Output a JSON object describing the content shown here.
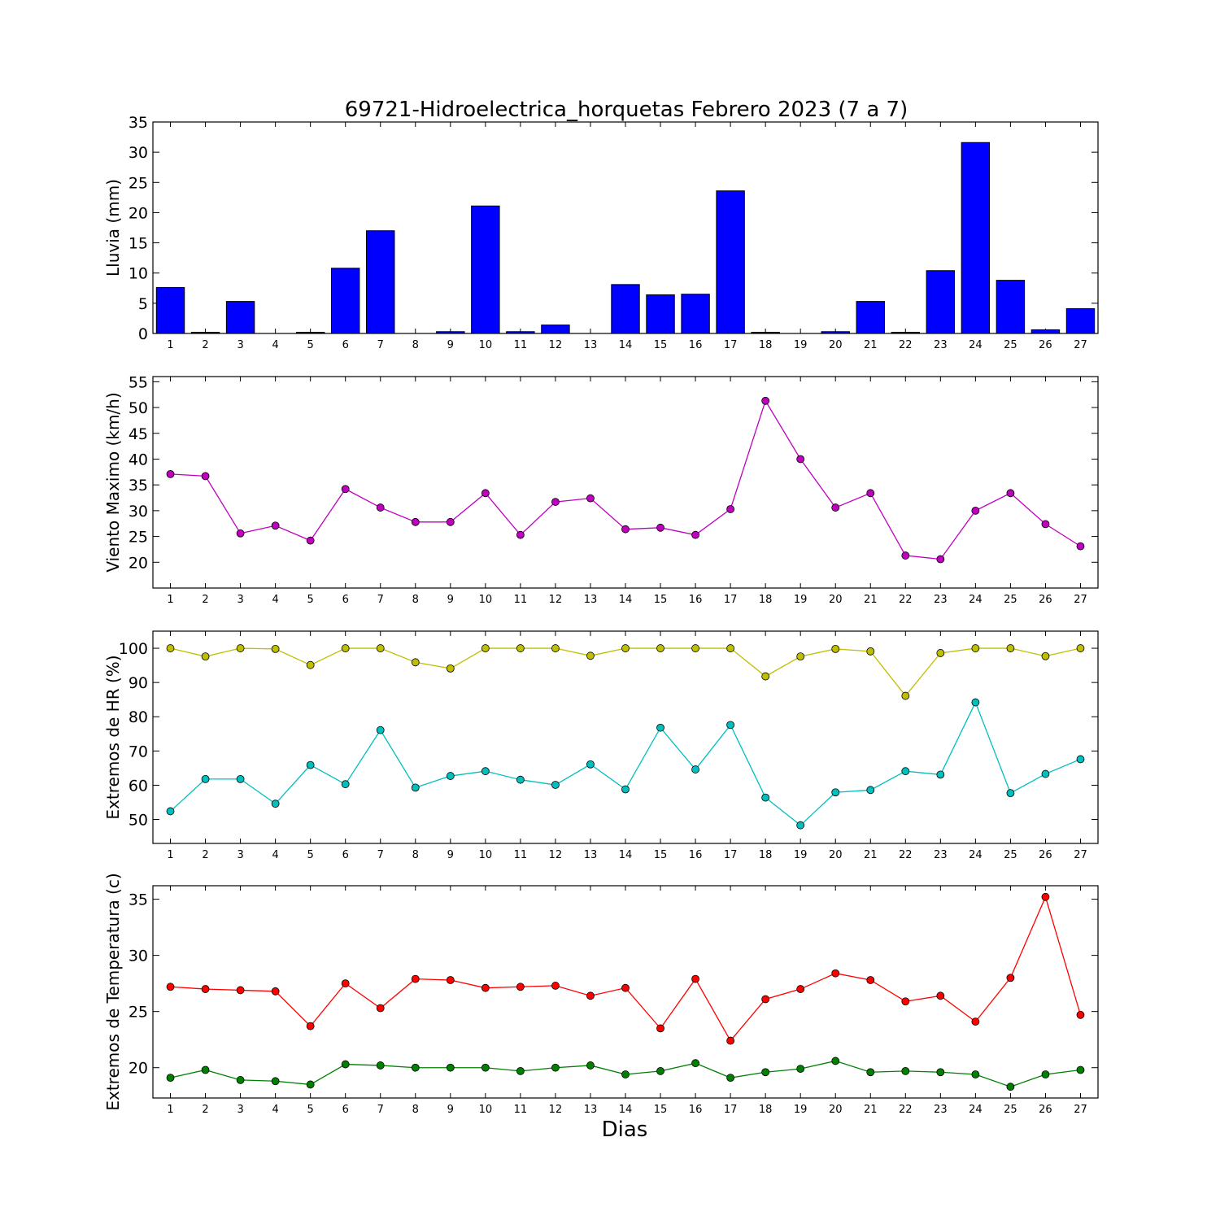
{
  "figure": {
    "title": "69721-Hidroelectrica_horquetas Febrero 2023  (7 a 7)",
    "xlabel": "Dias"
  },
  "chart_data": [
    {
      "type": "bar",
      "ylabel": "Lluvia (mm)",
      "ylim": [
        0,
        35
      ],
      "yticks": [
        0,
        5,
        10,
        15,
        20,
        25,
        30,
        35
      ],
      "xlim": [
        0.5,
        27.5
      ],
      "categories": [
        1,
        2,
        3,
        4,
        5,
        6,
        7,
        8,
        9,
        10,
        11,
        12,
        13,
        14,
        15,
        16,
        17,
        18,
        19,
        20,
        21,
        22,
        23,
        24,
        25,
        26,
        27
      ],
      "grid": false,
      "series": [
        {
          "color": "#0000ff",
          "values": [
            7.6,
            0.2,
            5.3,
            0,
            0.2,
            10.8,
            17.0,
            0,
            0.3,
            21.1,
            0.3,
            1.4,
            0,
            8.1,
            6.4,
            6.5,
            23.6,
            0.2,
            0,
            0.3,
            5.3,
            0.2,
            10.4,
            31.6,
            8.8,
            0.6,
            4.1
          ]
        }
      ]
    },
    {
      "type": "line",
      "ylabel": "Viento Maximo (km/h)",
      "ylim": [
        15,
        56
      ],
      "yticks": [
        20,
        25,
        30,
        35,
        40,
        45,
        50,
        55
      ],
      "xlim": [
        0.5,
        27.5
      ],
      "categories": [
        1,
        2,
        3,
        4,
        5,
        6,
        7,
        8,
        9,
        10,
        11,
        12,
        13,
        14,
        15,
        16,
        17,
        18,
        19,
        20,
        21,
        22,
        23,
        24,
        25,
        26,
        27
      ],
      "grid": false,
      "series": [
        {
          "color": "#bf00bf",
          "values": [
            37.1,
            36.7,
            25.6,
            27.1,
            24.2,
            34.2,
            30.6,
            27.8,
            27.8,
            33.4,
            25.3,
            31.7,
            32.4,
            26.4,
            26.7,
            25.3,
            30.3,
            51.3,
            40.0,
            30.6,
            33.4,
            21.3,
            20.6,
            30.0,
            33.4,
            27.4,
            23.1
          ]
        }
      ]
    },
    {
      "type": "line",
      "ylabel": "Extremos de HR (%)",
      "ylim": [
        43,
        105
      ],
      "yticks": [
        50,
        60,
        70,
        80,
        90,
        100
      ],
      "xlim": [
        0.5,
        27.5
      ],
      "categories": [
        1,
        2,
        3,
        4,
        5,
        6,
        7,
        8,
        9,
        10,
        11,
        12,
        13,
        14,
        15,
        16,
        17,
        18,
        19,
        20,
        21,
        22,
        23,
        24,
        25,
        26,
        27
      ],
      "grid": false,
      "series": [
        {
          "color": "#bfbf00",
          "values": [
            100,
            97.6,
            100,
            99.8,
            95.1,
            100,
            100,
            95.9,
            94.1,
            100,
            100,
            100,
            97.8,
            100,
            100,
            100,
            100,
            91.8,
            97.6,
            99.8,
            99.1,
            86.1,
            98.6,
            100,
            100,
            97.7,
            100
          ]
        },
        {
          "color": "#00bfbf",
          "values": [
            52.4,
            61.8,
            61.8,
            54.6,
            65.9,
            60.3,
            76.1,
            59.3,
            62.7,
            64.1,
            61.6,
            60.1,
            66.1,
            58.8,
            76.8,
            64.6,
            77.6,
            56.4,
            48.3,
            57.9,
            58.6,
            64.1,
            63.1,
            84.2,
            57.7,
            63.3,
            67.6
          ]
        }
      ]
    },
    {
      "type": "line",
      "ylabel": "Extremos de Temperatura (c)",
      "ylim": [
        17.3,
        36.2
      ],
      "yticks": [
        20,
        25,
        30,
        35
      ],
      "xlim": [
        0.5,
        27.5
      ],
      "categories": [
        1,
        2,
        3,
        4,
        5,
        6,
        7,
        8,
        9,
        10,
        11,
        12,
        13,
        14,
        15,
        16,
        17,
        18,
        19,
        20,
        21,
        22,
        23,
        24,
        25,
        26,
        27
      ],
      "grid": false,
      "series": [
        {
          "color": "#ff0000",
          "values": [
            27.2,
            27.0,
            26.9,
            26.8,
            23.7,
            27.5,
            25.3,
            27.9,
            27.8,
            27.1,
            27.2,
            27.3,
            26.4,
            27.1,
            23.5,
            27.9,
            22.4,
            26.1,
            27.0,
            28.4,
            27.8,
            25.9,
            26.4,
            24.1,
            28.0,
            35.2,
            24.7
          ]
        },
        {
          "color": "#008000",
          "values": [
            19.1,
            19.8,
            18.9,
            18.8,
            18.5,
            20.3,
            20.2,
            20.0,
            20.0,
            20.0,
            19.7,
            20.0,
            20.2,
            19.4,
            19.7,
            20.4,
            19.1,
            19.6,
            19.9,
            20.6,
            19.6,
            19.7,
            19.6,
            19.4,
            18.3,
            19.4,
            19.8
          ]
        }
      ]
    }
  ]
}
